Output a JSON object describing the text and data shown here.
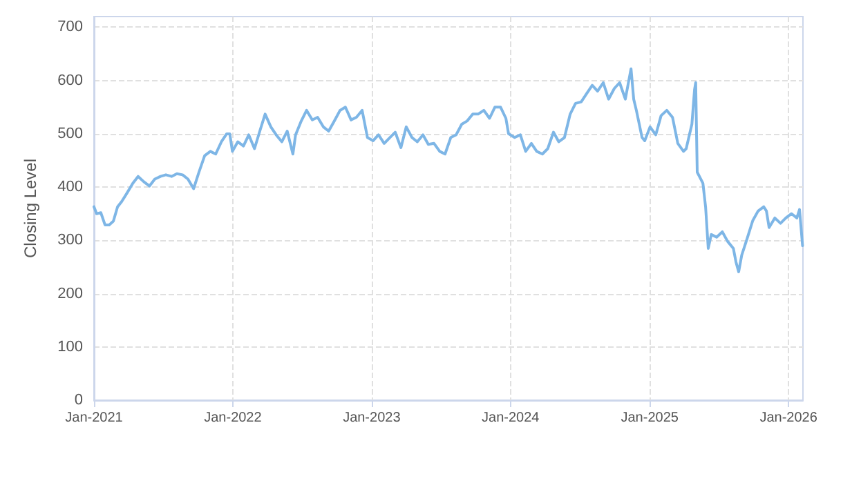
{
  "chart_data": {
    "type": "line",
    "ylabel": "Closing Level",
    "color": "#7eb6e6",
    "x": [
      "2021-01-01",
      "2021-01-08",
      "2021-01-19",
      "2021-01-30",
      "2021-02-10",
      "2021-02-21",
      "2021-03-04",
      "2021-03-15",
      "2021-03-29",
      "2021-04-13",
      "2021-04-27",
      "2021-05-12",
      "2021-05-27",
      "2021-06-10",
      "2021-06-25",
      "2021-07-09",
      "2021-07-24",
      "2021-08-07",
      "2021-08-22",
      "2021-09-05",
      "2021-09-20",
      "2021-10-04",
      "2021-10-19",
      "2021-11-03",
      "2021-11-17",
      "2021-12-02",
      "2021-12-16",
      "2021-12-24",
      "2021-12-31",
      "2022-01-14",
      "2022-01-29",
      "2022-02-12",
      "2022-02-27",
      "2022-03-13",
      "2022-03-27",
      "2022-04-11",
      "2022-04-25",
      "2022-05-10",
      "2022-05-24",
      "2022-06-08",
      "2022-06-15",
      "2022-06-30",
      "2022-07-14",
      "2022-07-29",
      "2022-08-12",
      "2022-08-27",
      "2022-09-10",
      "2022-09-25",
      "2022-10-10",
      "2022-10-24",
      "2022-11-08",
      "2022-11-22",
      "2022-12-07",
      "2022-12-21",
      "2023-01-05",
      "2023-01-19",
      "2023-02-03",
      "2023-02-18",
      "2023-03-04",
      "2023-03-19",
      "2023-04-02",
      "2023-04-17",
      "2023-05-01",
      "2023-05-16",
      "2023-05-30",
      "2023-06-14",
      "2023-06-29",
      "2023-07-13",
      "2023-07-28",
      "2023-08-11",
      "2023-08-26",
      "2023-09-09",
      "2023-09-24",
      "2023-10-08",
      "2023-10-23",
      "2023-11-07",
      "2023-11-21",
      "2023-12-06",
      "2023-12-20",
      "2023-12-27",
      "2024-01-12",
      "2024-01-27",
      "2024-02-10",
      "2024-02-25",
      "2024-03-10",
      "2024-03-25",
      "2024-04-08",
      "2024-04-23",
      "2024-05-07",
      "2024-05-22",
      "2024-06-06",
      "2024-06-20",
      "2024-07-05",
      "2024-07-19",
      "2024-08-03",
      "2024-08-17",
      "2024-09-01",
      "2024-09-15",
      "2024-09-30",
      "2024-10-14",
      "2024-10-29",
      "2024-11-13",
      "2024-11-20",
      "2024-11-27",
      "2024-12-12",
      "2024-12-19",
      "2025-01-02",
      "2025-01-17",
      "2025-01-31",
      "2025-02-15",
      "2025-03-02",
      "2025-03-16",
      "2025-03-31",
      "2025-04-07",
      "2025-04-22",
      "2025-04-29",
      "2025-05-02",
      "2025-05-06",
      "2025-05-21",
      "2025-05-28",
      "2025-06-04",
      "2025-06-12",
      "2025-06-26",
      "2025-07-11",
      "2025-07-25",
      "2025-08-09",
      "2025-08-16",
      "2025-08-23",
      "2025-08-31",
      "2025-09-14",
      "2025-09-29",
      "2025-10-13",
      "2025-10-28",
      "2025-11-04",
      "2025-11-11",
      "2025-11-26",
      "2025-12-11",
      "2025-12-25",
      "2026-01-09",
      "2026-01-23",
      "2026-01-30",
      "2026-02-07"
    ],
    "values": [
      363,
      350,
      352,
      329,
      329,
      336,
      363,
      373,
      389,
      407,
      420,
      410,
      402,
      415,
      420,
      423,
      420,
      425,
      423,
      415,
      397,
      428,
      459,
      467,
      462,
      485,
      500,
      500,
      467,
      485,
      477,
      498,
      472,
      505,
      537,
      513,
      498,
      485,
      505,
      462,
      498,
      524,
      544,
      526,
      531,
      513,
      505,
      524,
      544,
      550,
      526,
      531,
      544,
      493,
      487,
      498,
      482,
      493,
      503,
      474,
      513,
      493,
      485,
      498,
      480,
      482,
      467,
      462,
      493,
      498,
      518,
      524,
      537,
      537,
      544,
      529,
      550,
      550,
      529,
      500,
      493,
      498,
      467,
      482,
      467,
      462,
      472,
      503,
      485,
      493,
      537,
      557,
      560,
      575,
      591,
      580,
      596,
      565,
      585,
      596,
      565,
      622,
      565,
      544,
      493,
      487,
      513,
      498,
      534,
      544,
      531,
      482,
      467,
      472,
      518,
      583,
      596,
      428,
      407,
      363,
      285,
      311,
      306,
      316,
      298,
      285,
      259,
      241,
      272,
      303,
      337,
      355,
      363,
      355,
      324,
      342,
      332,
      342,
      350,
      342,
      358,
      290
    ],
    "xlim": [
      "2021-01-01",
      "2026-02-08"
    ],
    "xticks": [
      {
        "value": "2021-01-01",
        "label": "Jan-2021"
      },
      {
        "value": "2022-01-01",
        "label": "Jan-2022"
      },
      {
        "value": "2023-01-01",
        "label": "Jan-2023"
      },
      {
        "value": "2024-01-01",
        "label": "Jan-2024"
      },
      {
        "value": "2025-01-01",
        "label": "Jan-2025"
      },
      {
        "value": "2026-01-01",
        "label": "Jan-2026"
      }
    ],
    "ylim": [
      0,
      720
    ],
    "yticks": [
      0,
      100,
      200,
      300,
      400,
      500,
      600,
      700
    ],
    "grid": true,
    "marker": "none",
    "line_style": "solid"
  }
}
